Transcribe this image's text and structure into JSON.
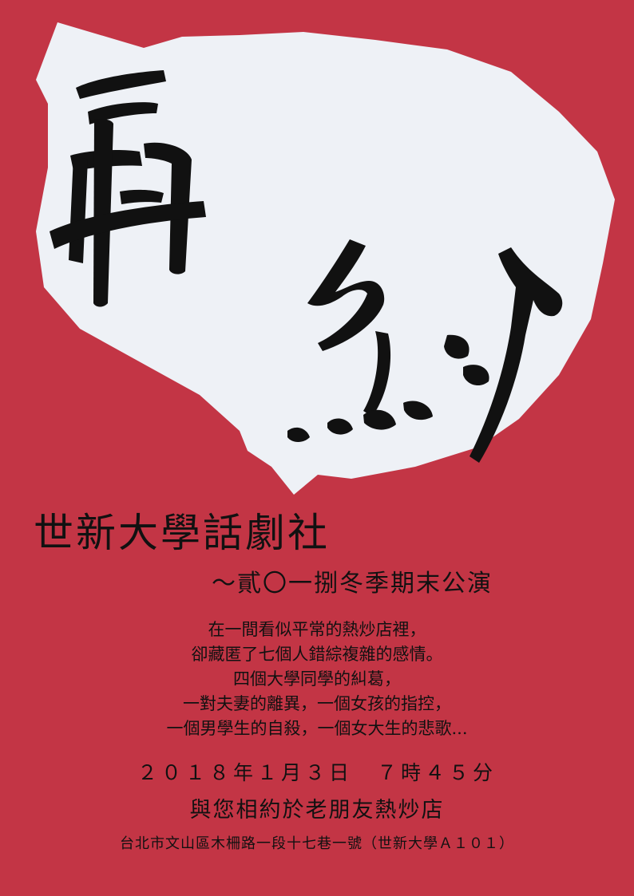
{
  "poster": {
    "title_calligraphy": "再約",
    "organization": "世新大學話劇社",
    "subtitle": "～貳〇一捌冬季期末公演",
    "description_lines": [
      "在一間看似平常的熱炒店裡，",
      "卻藏匿了七個人錯綜複雜的感情。",
      "四個大學同學的糾葛，",
      "一對夫妻的離異，一個女孩的指控，",
      "一個男學生的自殺，一個女大生的悲歌..."
    ],
    "datetime": "２０１８年１月３日　７時４５分",
    "venue_line": "與您相約於老朋友熱炒店",
    "address": "台北市文山區木柵路一段十七巷一號（世新大學Ａ１０１）"
  },
  "colors": {
    "background": "#c33545",
    "bubble": "#eef1f6",
    "ink": "#111111"
  }
}
